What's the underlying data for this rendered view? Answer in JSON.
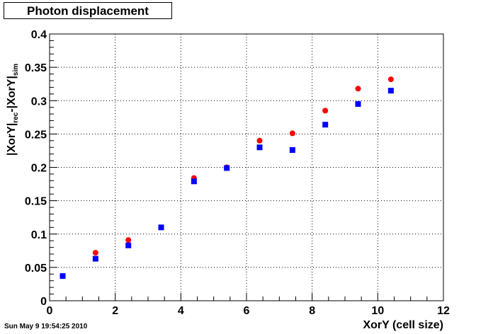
{
  "chart_data": {
    "type": "scatter",
    "title": "Photon displacement",
    "xlabel": "XorY (cell size)",
    "ylabel": {
      "part1": "|XorY|",
      "sub1": "rec",
      "part2": "-|XorY|",
      "sub2": "sim"
    },
    "xlim": [
      0,
      12
    ],
    "ylim": [
      0,
      0.4
    ],
    "x_ticks": [
      0,
      2,
      4,
      6,
      8,
      10,
      12
    ],
    "y_ticks": [
      0,
      0.05,
      0.1,
      0.15,
      0.2,
      0.25,
      0.3,
      0.35,
      0.4
    ],
    "x_tick_labels": [
      "0",
      "2",
      "4",
      "6",
      "8",
      "10",
      "12"
    ],
    "y_tick_labels": [
      "0",
      "0.05",
      "0.1",
      "0.15",
      "0.2",
      "0.25",
      "0.3",
      "0.35",
      "0.4"
    ],
    "grid": true,
    "series": [
      {
        "marker": "circle",
        "color": "#ff0000",
        "points": [
          {
            "x": 1.4,
            "y": 0.072
          },
          {
            "x": 2.4,
            "y": 0.091
          },
          {
            "x": 4.4,
            "y": 0.184
          },
          {
            "x": 5.4,
            "y": 0.2
          },
          {
            "x": 6.4,
            "y": 0.24
          },
          {
            "x": 7.4,
            "y": 0.251
          },
          {
            "x": 8.4,
            "y": 0.285
          },
          {
            "x": 9.4,
            "y": 0.318
          },
          {
            "x": 10.4,
            "y": 0.332
          }
        ]
      },
      {
        "marker": "square",
        "color": "#0000ff",
        "points": [
          {
            "x": 0.4,
            "y": 0.037
          },
          {
            "x": 1.4,
            "y": 0.063
          },
          {
            "x": 2.4,
            "y": 0.083
          },
          {
            "x": 3.4,
            "y": 0.11
          },
          {
            "x": 4.4,
            "y": 0.179
          },
          {
            "x": 5.4,
            "y": 0.199
          },
          {
            "x": 6.4,
            "y": 0.23
          },
          {
            "x": 7.4,
            "y": 0.226
          },
          {
            "x": 8.4,
            "y": 0.264
          },
          {
            "x": 9.4,
            "y": 0.295
          },
          {
            "x": 10.4,
            "y": 0.315
          }
        ]
      }
    ]
  },
  "footer_timestamp": "Sun May  9 19:54:25 2010"
}
